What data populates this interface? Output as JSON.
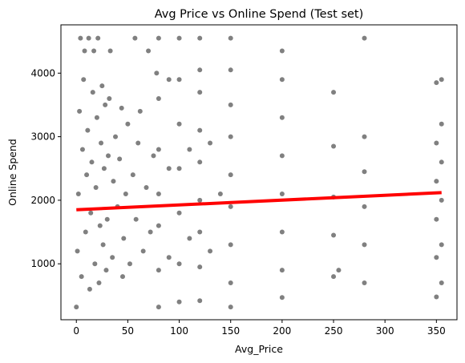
{
  "chart_data": {
    "type": "scatter",
    "title": "Avg Price vs Online Spend (Test set)",
    "xlabel": "Avg_Price",
    "ylabel": "Online Spend",
    "xlim": [
      -15,
      370
    ],
    "ylim": [
      120,
      4760
    ],
    "xticks": [
      0,
      50,
      100,
      150,
      200,
      250,
      300,
      350
    ],
    "xtick_labels": [
      "0",
      "50",
      "100",
      "150",
      "200",
      "250",
      "300",
      "350"
    ],
    "yticks": [
      1000,
      2000,
      3000,
      4000
    ],
    "ytick_labels": [
      "1000",
      "2000",
      "3000",
      "4000"
    ],
    "grid": false,
    "legend": "none",
    "point_color": "#808080",
    "line_color": "#ff0000",
    "series": [
      {
        "kind": "scatter",
        "points": [
          [
            0,
            320
          ],
          [
            1,
            1200
          ],
          [
            2,
            2100
          ],
          [
            3,
            3400
          ],
          [
            4,
            4550
          ],
          [
            5,
            800
          ],
          [
            6,
            2800
          ],
          [
            7,
            3900
          ],
          [
            8,
            4350
          ],
          [
            9,
            1500
          ],
          [
            10,
            2400
          ],
          [
            11,
            3100
          ],
          [
            12,
            4550
          ],
          [
            13,
            600
          ],
          [
            14,
            1800
          ],
          [
            15,
            2600
          ],
          [
            16,
            3700
          ],
          [
            17,
            4350
          ],
          [
            18,
            1000
          ],
          [
            19,
            2200
          ],
          [
            20,
            3300
          ],
          [
            21,
            4550
          ],
          [
            22,
            700
          ],
          [
            23,
            1600
          ],
          [
            24,
            2900
          ],
          [
            25,
            3800
          ],
          [
            26,
            1300
          ],
          [
            27,
            2500
          ],
          [
            28,
            3500
          ],
          [
            29,
            900
          ],
          [
            30,
            1700
          ],
          [
            31,
            2700
          ],
          [
            32,
            3600
          ],
          [
            33,
            4350
          ],
          [
            35,
            1100
          ],
          [
            36,
            2300
          ],
          [
            38,
            3000
          ],
          [
            40,
            1900
          ],
          [
            42,
            2650
          ],
          [
            44,
            3450
          ],
          [
            45,
            800
          ],
          [
            46,
            1400
          ],
          [
            48,
            2100
          ],
          [
            50,
            3200
          ],
          [
            52,
            1000
          ],
          [
            55,
            2400
          ],
          [
            57,
            4550
          ],
          [
            58,
            1700
          ],
          [
            60,
            2900
          ],
          [
            62,
            3400
          ],
          [
            65,
            1200
          ],
          [
            68,
            2200
          ],
          [
            70,
            4350
          ],
          [
            72,
            1500
          ],
          [
            75,
            2700
          ],
          [
            78,
            4000
          ],
          [
            80,
            320
          ],
          [
            80,
            900
          ],
          [
            80,
            1600
          ],
          [
            80,
            2100
          ],
          [
            80,
            2800
          ],
          [
            80,
            3600
          ],
          [
            80,
            4550
          ],
          [
            90,
            1100
          ],
          [
            90,
            2500
          ],
          [
            90,
            3900
          ],
          [
            100,
            400
          ],
          [
            100,
            1000
          ],
          [
            100,
            1800
          ],
          [
            100,
            2500
          ],
          [
            100,
            3200
          ],
          [
            100,
            3900
          ],
          [
            100,
            4550
          ],
          [
            110,
            1400
          ],
          [
            110,
            2800
          ],
          [
            120,
            420
          ],
          [
            120,
            950
          ],
          [
            120,
            1500
          ],
          [
            120,
            2000
          ],
          [
            120,
            2600
          ],
          [
            120,
            3100
          ],
          [
            120,
            3700
          ],
          [
            120,
            4050
          ],
          [
            120,
            4550
          ],
          [
            130,
            1200
          ],
          [
            130,
            2900
          ],
          [
            140,
            2100
          ],
          [
            150,
            320
          ],
          [
            150,
            700
          ],
          [
            150,
            1300
          ],
          [
            150,
            1900
          ],
          [
            150,
            2400
          ],
          [
            150,
            3000
          ],
          [
            150,
            3500
          ],
          [
            150,
            4050
          ],
          [
            150,
            4550
          ],
          [
            200,
            470
          ],
          [
            200,
            900
          ],
          [
            200,
            1500
          ],
          [
            200,
            2100
          ],
          [
            200,
            2700
          ],
          [
            200,
            3300
          ],
          [
            200,
            3900
          ],
          [
            200,
            4350
          ],
          [
            250,
            800
          ],
          [
            250,
            1450
          ],
          [
            250,
            2050
          ],
          [
            250,
            2850
          ],
          [
            250,
            3700
          ],
          [
            255,
            900
          ],
          [
            280,
            700
          ],
          [
            280,
            1300
          ],
          [
            280,
            1900
          ],
          [
            280,
            2450
          ],
          [
            280,
            3000
          ],
          [
            280,
            4550
          ],
          [
            350,
            480
          ],
          [
            350,
            1100
          ],
          [
            350,
            1700
          ],
          [
            350,
            2300
          ],
          [
            350,
            2900
          ],
          [
            350,
            3850
          ],
          [
            355,
            700
          ],
          [
            355,
            1300
          ],
          [
            355,
            2000
          ],
          [
            355,
            2600
          ],
          [
            355,
            3200
          ],
          [
            355,
            3900
          ]
        ]
      },
      {
        "kind": "line",
        "points": [
          [
            0,
            1850
          ],
          [
            355,
            2120
          ]
        ]
      }
    ]
  }
}
